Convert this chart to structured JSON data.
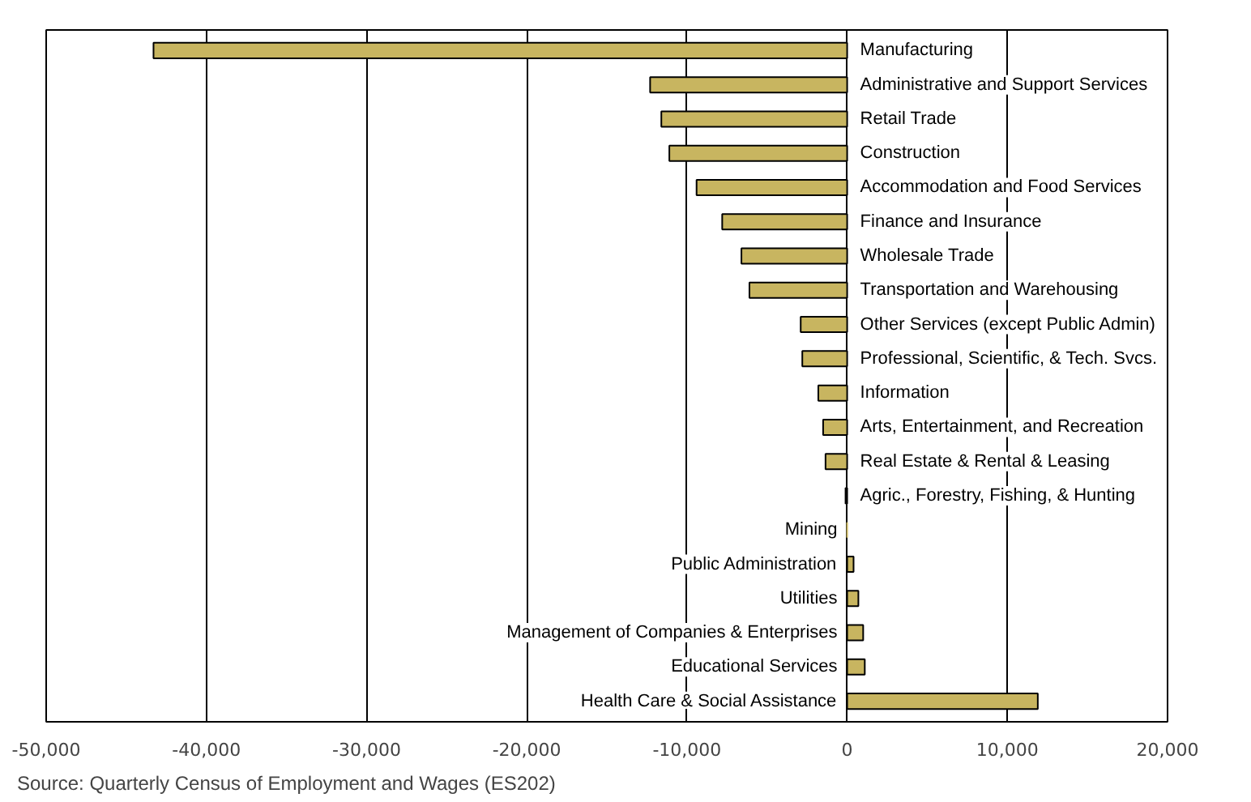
{
  "chart_data": {
    "type": "bar",
    "orientation": "horizontal",
    "categories": [
      "Manufacturing",
      "Administrative and Support Services",
      "Retail Trade",
      "Construction",
      "Accommodation and Food Services",
      "Finance and Insurance",
      "Wholesale Trade",
      "Transportation and Warehousing",
      "Other Services (except Public Admin)",
      "Professional, Scientific, & Tech. Svcs.",
      "Information",
      "Arts, Entertainment, and Recreation",
      "Real Estate & Rental & Leasing",
      "Agric., Forestry, Fishing, & Hunting",
      "Mining",
      "Public Administration",
      "Utilities",
      "Management of Companies & Enterprises",
      "Educational Services",
      "Health Care & Social Assistance"
    ],
    "values": [
      -43300,
      -12300,
      -11600,
      -11100,
      -9400,
      -7800,
      -6600,
      -6100,
      -2900,
      -2800,
      -1800,
      -1500,
      -1350,
      -100,
      0,
      400,
      700,
      1000,
      1100,
      11900
    ],
    "color": "#c8b560",
    "xlim": [
      -50000,
      20000
    ],
    "xticks": [
      {
        "value": -50000,
        "label": "-50,000"
      },
      {
        "value": -40000,
        "label": "-40,000"
      },
      {
        "value": -30000,
        "label": "-30,000"
      },
      {
        "value": -20000,
        "label": "-20,000"
      },
      {
        "value": -10000,
        "label": "-10,000"
      },
      0,
      {
        "value": 10000,
        "label": "10,000"
      },
      {
        "value": 20000,
        "label": "20,000"
      }
    ],
    "grid": "x",
    "tick_labels": "x",
    "annotations": [
      "Source:  Quarterly Census of Employment and Wages (ES202)"
    ]
  }
}
